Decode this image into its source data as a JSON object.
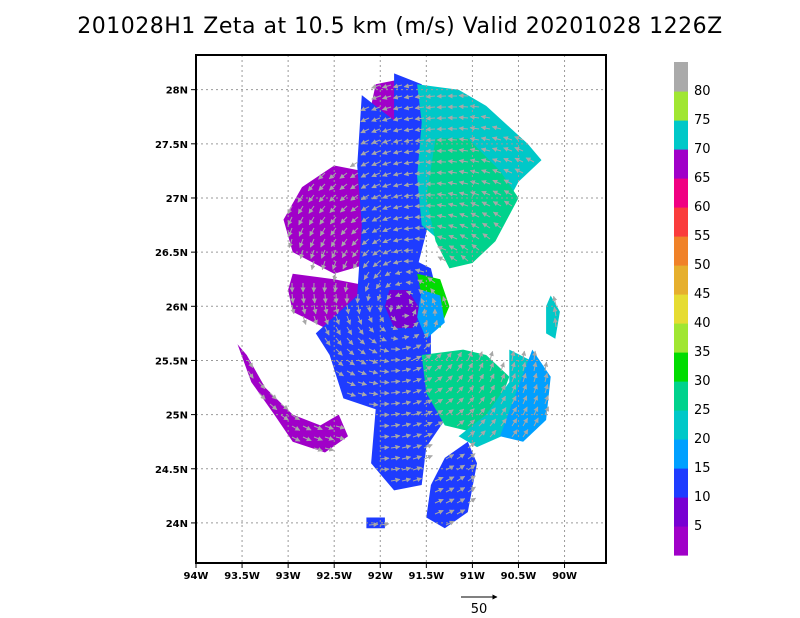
{
  "title": "201028H1  Zeta at 10.5 km (m/s) Valid 20201028  1226Z",
  "colorbar": {
    "labels": [
      "5",
      "10",
      "15",
      "20",
      "25",
      "30",
      "35",
      "40",
      "45",
      "50",
      "55",
      "60",
      "65",
      "70",
      "75",
      "80"
    ],
    "colors": [
      "#a000c8",
      "#7800d2",
      "#1e3cff",
      "#00a0ff",
      "#00c8c8",
      "#00d28c",
      "#00dc00",
      "#a0e632",
      "#e6dc32",
      "#e6af2d",
      "#f08228",
      "#fa3c3c",
      "#f00082",
      "#a000c8",
      "#00c8c8",
      "#a0e632",
      "#aaaaaa"
    ]
  },
  "reference_vector": {
    "label": "50"
  },
  "chart_data": {
    "type": "heatmap",
    "title": "201028H1  Zeta at 10.5 km (m/s) Valid 20201028  1226Z",
    "xlabel": "",
    "ylabel": "",
    "xlim": [
      -94,
      -89.55
    ],
    "ylim": [
      23.63,
      28.32
    ],
    "grid": true,
    "x_ticks": [
      {
        "value": -94,
        "label": "94W"
      },
      {
        "value": -93.5,
        "label": "93.5W"
      },
      {
        "value": -93,
        "label": "93W"
      },
      {
        "value": -92.5,
        "label": "92.5W"
      },
      {
        "value": -92,
        "label": "92W"
      },
      {
        "value": -91.5,
        "label": "91.5W"
      },
      {
        "value": -91,
        "label": "91W"
      },
      {
        "value": -90.5,
        "label": "90.5W"
      },
      {
        "value": -90,
        "label": "90W"
      }
    ],
    "y_ticks": [
      {
        "value": 24,
        "label": "24N"
      },
      {
        "value": 24.5,
        "label": "24.5N"
      },
      {
        "value": 25,
        "label": "25N"
      },
      {
        "value": 25.5,
        "label": "25.5N"
      },
      {
        "value": 26,
        "label": "26N"
      },
      {
        "value": 26.5,
        "label": "26.5N"
      },
      {
        "value": 27,
        "label": "27N"
      },
      {
        "value": 27.5,
        "label": "27.5N"
      },
      {
        "value": 28,
        "label": "28N"
      }
    ],
    "center": {
      "lon": -91.75,
      "lat": 25.98
    },
    "regions": [
      {
        "name": "outer purple west",
        "color": "#a000c8",
        "points": [
          [
            -92.85,
            27.1
          ],
          [
            -92.5,
            27.3
          ],
          [
            -92.2,
            27.25
          ],
          [
            -92.15,
            26.6
          ],
          [
            -92.1,
            26.4
          ],
          [
            -92.5,
            26.3
          ],
          [
            -92.95,
            26.5
          ],
          [
            -93.05,
            26.8
          ]
        ]
      },
      {
        "name": "purple lobe",
        "color": "#a000c8",
        "points": [
          [
            -92.95,
            26.3
          ],
          [
            -92.5,
            26.25
          ],
          [
            -92.2,
            26.2
          ],
          [
            -92.2,
            25.75
          ],
          [
            -92.6,
            25.8
          ],
          [
            -92.95,
            25.95
          ],
          [
            -93.0,
            26.15
          ]
        ]
      },
      {
        "name": "purple north",
        "color": "#a000c8",
        "points": [
          [
            -92.05,
            28.05
          ],
          [
            -91.75,
            28.1
          ],
          [
            -91.65,
            27.95
          ],
          [
            -91.75,
            27.65
          ],
          [
            -92.05,
            27.6
          ],
          [
            -92.1,
            27.85
          ]
        ]
      },
      {
        "name": "purple sw band",
        "color": "#a000c8",
        "points": [
          [
            -93.55,
            25.65
          ],
          [
            -93.4,
            25.3
          ],
          [
            -93.15,
            25.0
          ],
          [
            -92.95,
            24.75
          ],
          [
            -92.6,
            24.65
          ],
          [
            -92.35,
            24.8
          ],
          [
            -92.45,
            25.0
          ],
          [
            -92.65,
            24.9
          ],
          [
            -92.95,
            25.0
          ],
          [
            -93.25,
            25.25
          ],
          [
            -93.45,
            25.55
          ]
        ]
      },
      {
        "name": "blue main body",
        "color": "#1e3cff",
        "points": [
          [
            -92.2,
            27.95
          ],
          [
            -91.75,
            27.65
          ],
          [
            -91.55,
            27.2
          ],
          [
            -91.45,
            26.85
          ],
          [
            -91.6,
            26.35
          ],
          [
            -91.45,
            25.85
          ],
          [
            -91.45,
            25.3
          ],
          [
            -91.3,
            24.95
          ],
          [
            -91.5,
            24.7
          ],
          [
            -91.55,
            24.35
          ],
          [
            -91.85,
            24.3
          ],
          [
            -92.1,
            24.55
          ],
          [
            -92.05,
            25.05
          ],
          [
            -92.4,
            25.15
          ],
          [
            -92.55,
            25.55
          ],
          [
            -92.7,
            25.75
          ],
          [
            -92.25,
            26.1
          ],
          [
            -92.2,
            26.75
          ],
          [
            -92.25,
            27.3
          ]
        ]
      },
      {
        "name": "blue upper band",
        "color": "#1e3cff",
        "points": [
          [
            -91.85,
            28.15
          ],
          [
            -91.55,
            28.05
          ],
          [
            -91.45,
            27.55
          ],
          [
            -91.45,
            27.0
          ],
          [
            -91.6,
            26.9
          ],
          [
            -91.75,
            27.35
          ],
          [
            -91.85,
            27.75
          ]
        ]
      },
      {
        "name": "teal ne sector",
        "color": "#00c8c8",
        "points": [
          [
            -91.6,
            28.05
          ],
          [
            -91.15,
            28.0
          ],
          [
            -90.85,
            27.85
          ],
          [
            -90.4,
            27.5
          ],
          [
            -90.25,
            27.35
          ],
          [
            -90.5,
            27.15
          ],
          [
            -90.75,
            26.75
          ],
          [
            -91.05,
            26.55
          ],
          [
            -91.35,
            26.6
          ],
          [
            -91.55,
            26.75
          ],
          [
            -91.6,
            27.2
          ],
          [
            -91.55,
            27.7
          ]
        ]
      },
      {
        "name": "sea green ne",
        "color": "#00d28c",
        "points": [
          [
            -91.4,
            27.55
          ],
          [
            -91.05,
            27.55
          ],
          [
            -90.7,
            27.25
          ],
          [
            -90.5,
            27.0
          ],
          [
            -90.75,
            26.6
          ],
          [
            -91.0,
            26.4
          ],
          [
            -91.25,
            26.35
          ],
          [
            -91.4,
            26.6
          ],
          [
            -91.5,
            27.0
          ]
        ]
      },
      {
        "name": "sea green south",
        "color": "#00d28c",
        "points": [
          [
            -91.55,
            25.55
          ],
          [
            -91.1,
            25.6
          ],
          [
            -90.85,
            25.55
          ],
          [
            -90.6,
            25.35
          ],
          [
            -90.75,
            25.0
          ],
          [
            -91.05,
            24.85
          ],
          [
            -91.3,
            24.9
          ],
          [
            -91.5,
            25.2
          ]
        ]
      },
      {
        "name": "teal east band",
        "color": "#00c8c8",
        "points": [
          [
            -90.6,
            25.6
          ],
          [
            -90.25,
            25.45
          ],
          [
            -90.25,
            25.1
          ],
          [
            -90.55,
            24.85
          ],
          [
            -90.95,
            24.7
          ],
          [
            -91.15,
            24.8
          ],
          [
            -90.85,
            25.0
          ],
          [
            -90.6,
            25.3
          ]
        ]
      },
      {
        "name": "light blue far east",
        "color": "#00a0ff",
        "points": [
          [
            -90.35,
            25.6
          ],
          [
            -90.15,
            25.35
          ],
          [
            -90.2,
            24.95
          ],
          [
            -90.45,
            24.75
          ],
          [
            -90.7,
            24.8
          ],
          [
            -90.55,
            25.15
          ]
        ]
      },
      {
        "name": "blue eyewall",
        "color": "#1e3cff",
        "points": [
          [
            -92.1,
            26.2
          ],
          [
            -91.8,
            26.5
          ],
          [
            -91.45,
            26.35
          ],
          [
            -91.35,
            26.0
          ],
          [
            -91.5,
            25.65
          ],
          [
            -91.8,
            25.55
          ],
          [
            -92.1,
            25.7
          ],
          [
            -92.2,
            26.0
          ]
        ]
      },
      {
        "name": "purple eye",
        "color": "#7800d2",
        "points": [
          [
            -91.9,
            26.15
          ],
          [
            -91.7,
            26.15
          ],
          [
            -91.55,
            25.95
          ],
          [
            -91.65,
            25.8
          ],
          [
            -91.85,
            25.8
          ],
          [
            -91.95,
            26.0
          ]
        ]
      },
      {
        "name": "green core",
        "color": "#00dc00",
        "points": [
          [
            -91.6,
            26.3
          ],
          [
            -91.35,
            26.25
          ],
          [
            -91.25,
            26.0
          ],
          [
            -91.35,
            25.8
          ],
          [
            -91.5,
            25.9
          ],
          [
            -91.55,
            26.1
          ]
        ]
      },
      {
        "name": "light blue core",
        "color": "#00a0ff",
        "points": [
          [
            -91.55,
            26.15
          ],
          [
            -91.35,
            26.1
          ],
          [
            -91.3,
            25.85
          ],
          [
            -91.5,
            25.7
          ],
          [
            -91.6,
            25.9
          ]
        ]
      },
      {
        "name": "blue south band",
        "color": "#1e3cff",
        "points": [
          [
            -91.3,
            24.6
          ],
          [
            -91.05,
            24.75
          ],
          [
            -90.95,
            24.55
          ],
          [
            -91.05,
            24.1
          ],
          [
            -91.3,
            23.95
          ],
          [
            -91.5,
            24.05
          ],
          [
            -91.45,
            24.35
          ]
        ]
      },
      {
        "name": "blue small sw",
        "color": "#1e3cff",
        "points": [
          [
            -92.15,
            24.05
          ],
          [
            -91.95,
            24.05
          ],
          [
            -91.95,
            23.95
          ],
          [
            -92.15,
            23.95
          ]
        ]
      },
      {
        "name": "teal scattered east",
        "color": "#00c8c8",
        "points": [
          [
            -90.15,
            26.1
          ],
          [
            -90.05,
            25.95
          ],
          [
            -90.1,
            25.7
          ],
          [
            -90.2,
            25.75
          ],
          [
            -90.2,
            26.0
          ]
        ]
      }
    ],
    "vector_field": {
      "type": "cyclonic",
      "center": [
        -91.75,
        25.98
      ],
      "arrow_color": "#a8a8a8"
    },
    "note_unit": "m/s"
  }
}
